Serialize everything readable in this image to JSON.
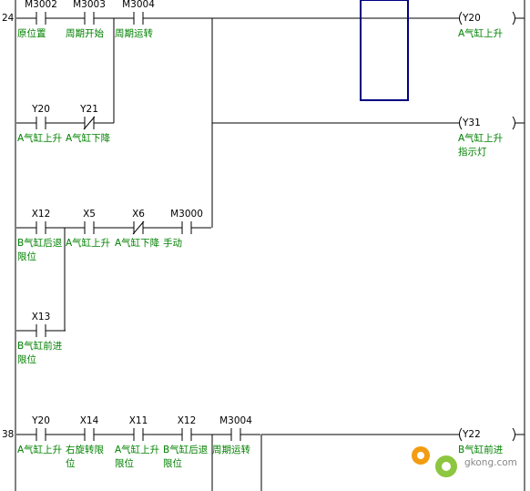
{
  "rungs": [
    {
      "number": "24",
      "contacts": [
        {
          "address": "M3002",
          "comment": [
            "原位置"
          ]
        },
        {
          "address": "M3003",
          "comment": [
            "周期开始"
          ]
        },
        {
          "address": "M3004",
          "comment": [
            "周期运转"
          ]
        },
        {
          "address": "Y20",
          "comment": [
            "A气缸上升"
          ]
        },
        {
          "address": "Y21",
          "comment": [
            "A气缸下降"
          ],
          "normally_closed": true
        },
        {
          "address": "X12",
          "comment": [
            "B气缸后退",
            "限位"
          ]
        },
        {
          "address": "X5",
          "comment": [
            "A气缸上升"
          ]
        },
        {
          "address": "X6",
          "comment": [
            "A气缸下降"
          ],
          "normally_closed": true
        },
        {
          "address": "M3000",
          "comment": [
            "手动"
          ]
        },
        {
          "address": "X13",
          "comment": [
            "B气缸前进",
            "限位"
          ]
        }
      ],
      "coils": [
        {
          "address": "Y20",
          "comment": [
            "A气缸上升"
          ]
        },
        {
          "address": "Y31",
          "comment": [
            "A气缸上升",
            "指示灯"
          ]
        }
      ]
    },
    {
      "number": "38",
      "contacts": [
        {
          "address": "Y20",
          "comment": [
            "A气缸上升"
          ]
        },
        {
          "address": "X14",
          "comment": [
            "右旋转限",
            "位"
          ]
        },
        {
          "address": "X11",
          "comment": [
            "A气缸上升",
            "限位"
          ]
        },
        {
          "address": "X12",
          "comment": [
            "B气缸后退",
            "限位"
          ]
        },
        {
          "address": "M3004",
          "comment": [
            "周期运转"
          ]
        }
      ],
      "coils": [
        {
          "address": "Y22",
          "comment": [
            "B气缸前进"
          ]
        }
      ]
    }
  ],
  "watermark": "gkong.com"
}
